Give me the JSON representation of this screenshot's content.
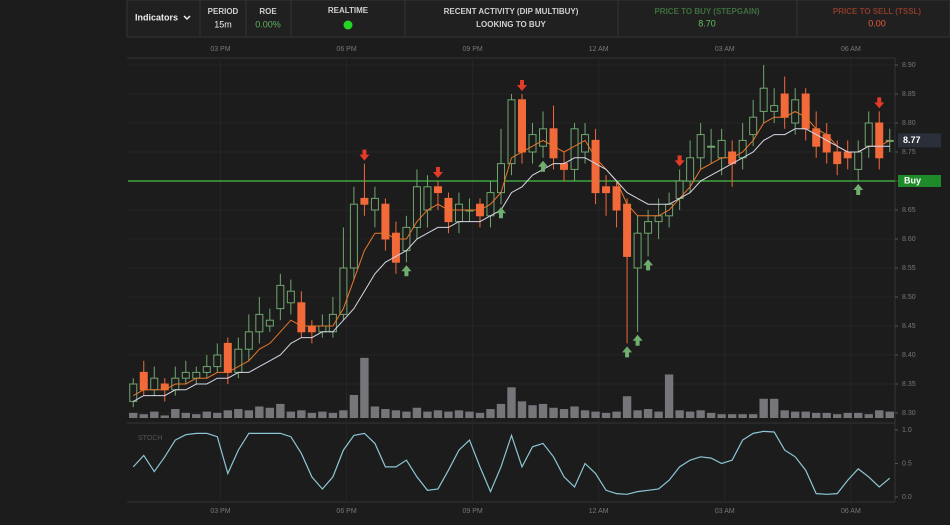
{
  "header": {
    "indicators": "Indicators",
    "period": {
      "label": "PERIOD",
      "value": "15m"
    },
    "roe": {
      "label": "ROE",
      "value": "0.00%"
    },
    "realtime": {
      "label": "REALTIME"
    },
    "activity": {
      "label": "RECENT ACTIVITY (DIP MULTIBUY)",
      "value": "LOOKING TO BUY"
    },
    "buy_price": {
      "label": "PRICE TO BUY (STEPGAIN)",
      "value": "8.70"
    },
    "sell_price": {
      "label": "PRICE TO SELL (TSSL)",
      "value": "0.00"
    }
  },
  "chart_data": {
    "type": "candlestick",
    "open": [
      8.32,
      8.37,
      8.34,
      8.35,
      8.34,
      8.36,
      8.36,
      8.37,
      8.38,
      8.42,
      8.37,
      8.41,
      8.44,
      8.45,
      8.48,
      8.49,
      8.49,
      8.45,
      8.44,
      8.44,
      8.47,
      8.55,
      8.67,
      8.65,
      8.66,
      8.61,
      8.58,
      8.62,
      8.65,
      8.69,
      8.67,
      8.63,
      8.65,
      8.66,
      8.64,
      8.68,
      8.73,
      8.84,
      8.75,
      8.76,
      8.79,
      8.73,
      8.72,
      8.75,
      8.77,
      8.69,
      8.69,
      8.66,
      8.55,
      8.61,
      8.63,
      8.64,
      8.67,
      8.7,
      8.74,
      8.76,
      8.74,
      8.75,
      8.74,
      8.78,
      8.82,
      8.82,
      8.85,
      8.8,
      8.85,
      8.79,
      8.78,
      8.75,
      8.75,
      8.72,
      8.76,
      8.8,
      8.77
    ],
    "high": [
      8.36,
      8.39,
      8.38,
      8.36,
      8.38,
      8.39,
      8.38,
      8.4,
      8.42,
      8.43,
      8.43,
      8.47,
      8.5,
      8.48,
      8.54,
      8.53,
      8.51,
      8.46,
      8.47,
      8.5,
      8.62,
      8.69,
      8.73,
      8.69,
      8.67,
      8.63,
      8.64,
      8.72,
      8.71,
      8.7,
      8.68,
      8.68,
      8.67,
      8.67,
      8.7,
      8.79,
      8.85,
      8.85,
      8.8,
      8.82,
      8.83,
      8.75,
      8.8,
      8.8,
      8.79,
      8.71,
      8.7,
      8.67,
      8.64,
      8.65,
      8.67,
      8.68,
      8.72,
      8.77,
      8.8,
      8.79,
      8.79,
      8.77,
      8.8,
      8.84,
      8.9,
      8.86,
      8.88,
      8.86,
      8.86,
      8.82,
      8.8,
      8.77,
      8.77,
      8.77,
      8.82,
      8.82,
      8.79
    ],
    "low": [
      8.31,
      8.33,
      8.33,
      8.32,
      8.33,
      8.35,
      8.35,
      8.36,
      8.37,
      8.35,
      8.36,
      8.39,
      8.42,
      8.44,
      8.46,
      8.47,
      8.43,
      8.42,
      8.43,
      8.43,
      8.46,
      8.53,
      8.64,
      8.62,
      8.58,
      8.54,
      8.56,
      8.6,
      8.62,
      8.65,
      8.61,
      8.61,
      8.63,
      8.62,
      8.62,
      8.66,
      8.71,
      8.73,
      8.73,
      8.74,
      8.72,
      8.7,
      8.7,
      8.73,
      8.66,
      8.64,
      8.62,
      8.42,
      8.44,
      8.57,
      8.6,
      8.62,
      8.65,
      8.68,
      8.72,
      8.73,
      8.71,
      8.69,
      8.72,
      8.76,
      8.8,
      8.8,
      8.79,
      8.78,
      8.77,
      8.74,
      8.73,
      8.71,
      8.72,
      8.7,
      8.74,
      8.72,
      8.75
    ],
    "close": [
      8.35,
      8.34,
      8.36,
      8.34,
      8.36,
      8.37,
      8.37,
      8.38,
      8.4,
      8.37,
      8.41,
      8.44,
      8.47,
      8.46,
      8.52,
      8.51,
      8.44,
      8.44,
      8.45,
      8.47,
      8.55,
      8.66,
      8.66,
      8.67,
      8.6,
      8.56,
      8.62,
      8.69,
      8.69,
      8.68,
      8.63,
      8.66,
      8.65,
      8.64,
      8.68,
      8.73,
      8.84,
      8.75,
      8.78,
      8.79,
      8.74,
      8.72,
      8.79,
      8.78,
      8.68,
      8.68,
      8.65,
      8.57,
      8.61,
      8.63,
      8.64,
      8.66,
      8.7,
      8.74,
      8.78,
      8.76,
      8.77,
      8.73,
      8.77,
      8.81,
      8.86,
      8.83,
      8.81,
      8.84,
      8.79,
      8.76,
      8.75,
      8.73,
      8.74,
      8.75,
      8.8,
      8.74,
      8.77
    ],
    "up_color": "#6fa66f",
    "down_color": "#f2693a",
    "xlim": [
      -0.5,
      72.5
    ],
    "xticks": [
      {
        "value": 8.3,
        "label": "03 PM"
      },
      {
        "value": 20.3,
        "label": "06 PM"
      },
      {
        "value": 32.3,
        "label": "09 PM"
      },
      {
        "value": 44.3,
        "label": "12 AM"
      },
      {
        "value": 56.3,
        "label": "03 AM"
      },
      {
        "value": 68.3,
        "label": "06 AM"
      }
    ],
    "ylim": [
      8.3,
      8.9
    ],
    "yticks": [
      {
        "value": 8.3,
        "label": "8.30"
      },
      {
        "value": 8.35,
        "label": "8.35"
      },
      {
        "value": 8.4,
        "label": "8.40"
      },
      {
        "value": 8.45,
        "label": "8.45"
      },
      {
        "value": 8.5,
        "label": "8.50"
      },
      {
        "value": 8.55,
        "label": "8.55"
      },
      {
        "value": 8.6,
        "label": "8.60"
      },
      {
        "value": 8.65,
        "label": "8.65"
      },
      {
        "value": 8.7,
        "label": "8.70"
      },
      {
        "value": 8.75,
        "label": "8.75"
      },
      {
        "value": 8.8,
        "label": "8.80"
      },
      {
        "value": 8.85,
        "label": "8.85"
      },
      {
        "value": 8.9,
        "label": "8.90"
      }
    ],
    "moving_averages": [
      {
        "color": "#e8762c",
        "values": [
          8.33,
          8.34,
          8.34,
          8.34,
          8.35,
          8.35,
          8.36,
          8.36,
          8.37,
          8.37,
          8.38,
          8.39,
          8.41,
          8.42,
          8.44,
          8.46,
          8.45,
          8.45,
          8.45,
          8.45,
          8.48,
          8.53,
          8.58,
          8.61,
          8.61,
          8.6,
          8.6,
          8.63,
          8.65,
          8.66,
          8.65,
          8.65,
          8.65,
          8.65,
          8.66,
          8.68,
          8.74,
          8.75,
          8.76,
          8.77,
          8.76,
          8.75,
          8.76,
          8.77,
          8.74,
          8.72,
          8.7,
          8.66,
          8.64,
          8.64,
          8.64,
          8.65,
          8.67,
          8.69,
          8.72,
          8.73,
          8.74,
          8.74,
          8.75,
          8.77,
          8.8,
          8.81,
          8.81,
          8.82,
          8.81,
          8.79,
          8.78,
          8.76,
          8.75,
          8.75,
          8.76,
          8.76,
          8.77
        ]
      },
      {
        "color": "#d6d6e6",
        "values": [
          8.32,
          8.33,
          8.33,
          8.33,
          8.34,
          8.34,
          8.35,
          8.35,
          8.36,
          8.36,
          8.37,
          8.37,
          8.38,
          8.39,
          8.4,
          8.42,
          8.43,
          8.43,
          8.44,
          8.44,
          8.46,
          8.48,
          8.51,
          8.54,
          8.56,
          8.57,
          8.58,
          8.6,
          8.61,
          8.62,
          8.62,
          8.63,
          8.63,
          8.63,
          8.64,
          8.65,
          8.68,
          8.69,
          8.71,
          8.72,
          8.73,
          8.73,
          8.74,
          8.74,
          8.73,
          8.72,
          8.7,
          8.68,
          8.67,
          8.66,
          8.66,
          8.66,
          8.67,
          8.68,
          8.7,
          8.71,
          8.72,
          8.73,
          8.74,
          8.75,
          8.77,
          8.78,
          8.78,
          8.79,
          8.79,
          8.78,
          8.77,
          8.76,
          8.75,
          8.75,
          8.76,
          8.76,
          8.76
        ]
      }
    ],
    "volume": {
      "color": "#75757a",
      "ylim": [
        0,
        100
      ],
      "values": [
        8,
        6,
        10,
        4,
        14,
        8,
        6,
        10,
        8,
        12,
        14,
        12,
        18,
        16,
        22,
        10,
        12,
        8,
        10,
        8,
        12,
        36,
        94,
        18,
        14,
        12,
        10,
        16,
        10,
        12,
        10,
        12,
        10,
        8,
        14,
        22,
        48,
        26,
        20,
        22,
        16,
        14,
        18,
        12,
        10,
        8,
        10,
        34,
        12,
        14,
        10,
        68,
        12,
        10,
        12,
        8,
        6,
        6,
        6,
        6,
        30,
        30,
        12,
        10,
        10,
        8,
        8,
        6,
        8,
        8,
        6,
        12,
        10
      ]
    },
    "stochastic": {
      "label": "STOCH",
      "color": "#8cc6d6",
      "ylim": [
        0,
        1
      ],
      "yticks": [
        {
          "value": 0,
          "label": "0.0"
        },
        {
          "value": 0.5,
          "label": "0.5"
        },
        {
          "value": 1,
          "label": "1.0"
        }
      ],
      "values": [
        0.45,
        0.62,
        0.38,
        0.6,
        0.85,
        0.93,
        0.95,
        0.95,
        0.9,
        0.35,
        0.7,
        0.95,
        0.95,
        0.95,
        0.95,
        0.9,
        0.65,
        0.3,
        0.12,
        0.3,
        0.7,
        0.92,
        0.95,
        0.8,
        0.45,
        0.45,
        0.55,
        0.3,
        0.1,
        0.12,
        0.4,
        0.7,
        0.85,
        0.45,
        0.08,
        0.45,
        0.92,
        0.45,
        0.75,
        0.8,
        0.6,
        0.3,
        0.15,
        0.5,
        0.35,
        0.1,
        0.05,
        0.04,
        0.08,
        0.1,
        0.12,
        0.25,
        0.45,
        0.55,
        0.6,
        0.58,
        0.5,
        0.55,
        0.85,
        0.95,
        0.98,
        0.97,
        0.7,
        0.6,
        0.4,
        0.05,
        0.04,
        0.05,
        0.25,
        0.42,
        0.3,
        0.15,
        0.28
      ]
    },
    "buy_level": {
      "value": 8.7,
      "label": "Buy",
      "color": "#3fa33f"
    },
    "last_price": {
      "value": 8.77,
      "label": "8.77"
    },
    "buy_signals": [
      26,
      35,
      39,
      47,
      48,
      49,
      69
    ],
    "sell_signals": [
      22,
      29,
      37,
      52,
      71
    ]
  }
}
